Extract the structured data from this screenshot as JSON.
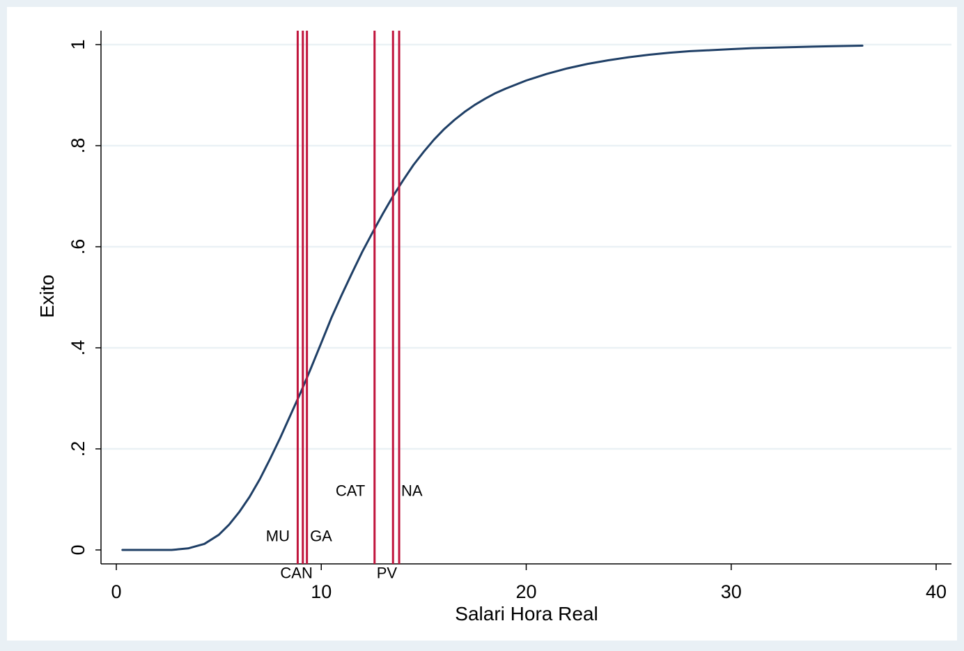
{
  "chart_data": {
    "type": "line",
    "title": "",
    "xlabel": "Salari Hora Real",
    "ylabel": "Exito",
    "xlim": [
      0,
      40
    ],
    "ylim": [
      0,
      1
    ],
    "x_ticks": [
      {
        "value": 0,
        "label": "0"
      },
      {
        "value": 10,
        "label": "10"
      },
      {
        "value": 20,
        "label": "20"
      },
      {
        "value": 30,
        "label": "30"
      },
      {
        "value": 40,
        "label": "40"
      }
    ],
    "y_ticks": [
      {
        "value": 0,
        "label": "0"
      },
      {
        "value": 0.2,
        "label": ".2"
      },
      {
        "value": 0.4,
        "label": ".4"
      },
      {
        "value": 0.6,
        "label": ".6"
      },
      {
        "value": 0.8,
        "label": ".8"
      },
      {
        "value": 1,
        "label": "1"
      }
    ],
    "grid": true,
    "series": [
      {
        "color": "#1f3f66",
        "x": [
          0.3,
          1.5,
          2.7,
          3.5,
          4.3,
          5.0,
          5.5,
          6.0,
          6.5,
          7.0,
          7.5,
          8.0,
          8.5,
          9.0,
          9.5,
          10.0,
          10.5,
          11.0,
          11.5,
          12.0,
          12.5,
          13.0,
          13.5,
          14.0,
          14.5,
          15.0,
          15.5,
          16.0,
          16.5,
          17.0,
          17.5,
          18.0,
          18.5,
          19.0,
          20.0,
          21.0,
          22.0,
          23.0,
          24.0,
          25.0,
          26.0,
          27.0,
          28.0,
          29.0,
          30.0,
          31.0,
          32.0,
          33.0,
          34.0,
          35.0,
          36.4
        ],
        "y": [
          0.0,
          0.0,
          0.0,
          0.003,
          0.012,
          0.03,
          0.05,
          0.075,
          0.105,
          0.14,
          0.18,
          0.222,
          0.267,
          0.312,
          0.36,
          0.41,
          0.46,
          0.505,
          0.548,
          0.59,
          0.628,
          0.665,
          0.7,
          0.732,
          0.762,
          0.788,
          0.812,
          0.833,
          0.851,
          0.867,
          0.881,
          0.893,
          0.904,
          0.913,
          0.929,
          0.942,
          0.953,
          0.962,
          0.969,
          0.975,
          0.98,
          0.984,
          0.987,
          0.989,
          0.991,
          0.993,
          0.994,
          0.995,
          0.996,
          0.997,
          0.998
        ]
      }
    ],
    "reference_lines": {
      "color": "#c0143c",
      "x": [
        8.85,
        9.1,
        9.3,
        12.6,
        13.5,
        13.8
      ]
    },
    "annotations": [
      {
        "label": "MU",
        "x": 7.3,
        "y": 0.028
      },
      {
        "label": "GA",
        "x": 9.45,
        "y": 0.028
      },
      {
        "label": "CAT",
        "x": 10.7,
        "y": 0.118
      },
      {
        "label": "NA",
        "x": 13.9,
        "y": 0.118
      },
      {
        "label": "CAN",
        "x": 8.0,
        "y": -0.045
      },
      {
        "label": "PV",
        "x": 12.7,
        "y": -0.045
      }
    ]
  }
}
